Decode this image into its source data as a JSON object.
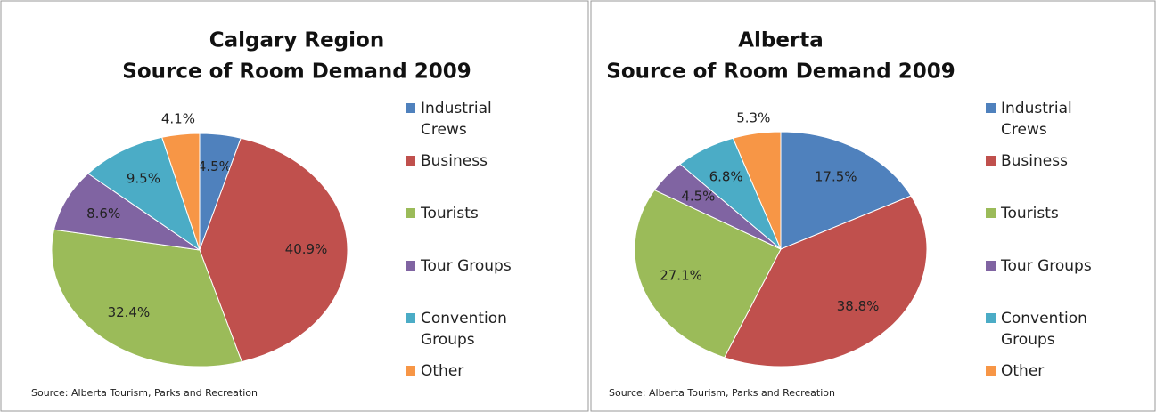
{
  "chart_data": [
    {
      "type": "pie",
      "title": "Calgary Region",
      "subtitle": "Source of Room Demand 2009",
      "categories": [
        "Industrial Crews",
        "Business",
        "Tourists",
        "Tour Groups",
        "Convention Groups",
        "Other"
      ],
      "values": [
        4.5,
        40.9,
        32.4,
        8.6,
        9.5,
        4.1
      ],
      "value_labels": [
        "4.5%",
        "40.9%",
        "32.4%",
        "8.6%",
        "9.5%",
        "4.1%"
      ],
      "colors": [
        "#4f81bd",
        "#c0504d",
        "#9bbb59",
        "#8064a2",
        "#4bacc6",
        "#f79646"
      ],
      "legend": "right",
      "source": "Source: Alberta Tourism, Parks and Recreation"
    },
    {
      "type": "pie",
      "title": "Alberta",
      "subtitle": "Source of Room Demand 2009",
      "categories": [
        "Industrial Crews",
        "Business",
        "Tourists",
        "Tour Groups",
        "Convention Groups",
        "Other"
      ],
      "values": [
        17.5,
        38.8,
        27.1,
        4.5,
        6.8,
        5.3
      ],
      "value_labels": [
        "17.5%",
        "38.8%",
        "27.1%",
        "4.5%",
        "6.8%",
        "5.3%"
      ],
      "colors": [
        "#4f81bd",
        "#c0504d",
        "#9bbb59",
        "#8064a2",
        "#4bacc6",
        "#f79646"
      ],
      "legend": "right",
      "source": "Source: Alberta Tourism, Parks and Recreation"
    }
  ]
}
